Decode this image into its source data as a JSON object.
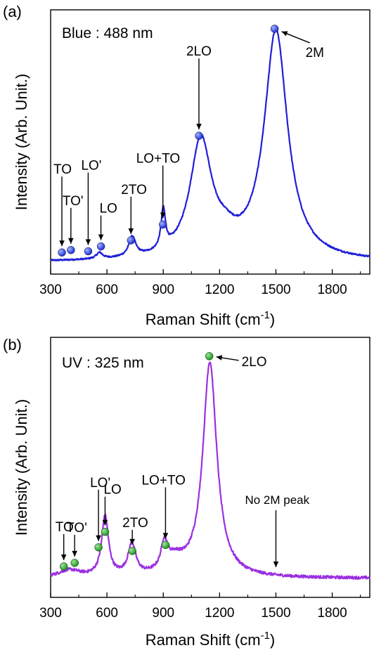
{
  "colors": {
    "panel_a_line": "#1f1fd8",
    "panel_a_marker": "#1d2fd6",
    "panel_b_line": "#9b30e0",
    "panel_b_marker": "#1a9a1a"
  },
  "chart_data": [
    {
      "type": "line",
      "panel_label": "(a)",
      "inset_label": "Blue : 488 nm",
      "xlabel": "Raman Shift (cm",
      "xlabel_sup": "-1",
      "xlabel_end": ")",
      "ylabel": "Intensity (Arb. Unit.)",
      "xlim": [
        300,
        2000
      ],
      "ylim": [
        0,
        1.0
      ],
      "xticks": [
        300,
        600,
        900,
        1200,
        1500,
        1800
      ],
      "xtick_labels": [
        "300",
        "600",
        "900",
        "1200",
        "1500",
        "1800"
      ],
      "peaks": [
        {
          "x": 1500,
          "w": 75,
          "h": 0.94
        },
        {
          "x": 1100,
          "w": 70,
          "h": 0.48
        },
        {
          "x": 1230,
          "w": 70,
          "h": 0.05
        },
        {
          "x": 900,
          "w": 14,
          "h": 0.16
        },
        {
          "x": 735,
          "w": 22,
          "h": 0.08
        },
        {
          "x": 560,
          "w": 20,
          "h": 0.025
        }
      ],
      "baseline": 0.02,
      "markers": [
        {
          "x": 360,
          "y": 0.06,
          "label": "TO"
        },
        {
          "x": 408,
          "y": 0.07,
          "label": "TO'"
        },
        {
          "x": 500,
          "y": 0.065,
          "label": "LO'"
        },
        {
          "x": 568,
          "y": 0.085,
          "label": "LO"
        },
        {
          "x": 728,
          "y": 0.11,
          "label": "2TO"
        },
        {
          "x": 898,
          "y": 0.175,
          "label": "LO+TO"
        },
        {
          "x": 1090,
          "y": 0.54,
          "label": "2LO"
        },
        {
          "x": 1493,
          "y": 0.98,
          "label": "2M"
        }
      ]
    },
    {
      "type": "line",
      "panel_label": "(b)",
      "inset_label": "UV : 325 nm",
      "xlabel": "Raman Shift (cm",
      "xlabel_sup": "-1",
      "xlabel_end": ")",
      "ylabel": "Intensity (Arb. Unit.)",
      "xlim": [
        300,
        2000
      ],
      "ylim": [
        0,
        1.0
      ],
      "xticks": [
        300,
        600,
        900,
        1200,
        1500,
        1800
      ],
      "xtick_labels": [
        "300",
        "600",
        "900",
        "1200",
        "1500",
        "1800"
      ],
      "peaks": [
        {
          "x": 1148,
          "w": 45,
          "h": 0.9
        },
        {
          "x": 960,
          "w": 60,
          "h": 0.06
        },
        {
          "x": 590,
          "w": 22,
          "h": 0.25
        },
        {
          "x": 733,
          "w": 25,
          "h": 0.13
        },
        {
          "x": 905,
          "w": 20,
          "h": 0.11
        },
        {
          "x": 400,
          "w": 70,
          "h": 0.03
        }
      ],
      "baseline": 0.05,
      "markers": [
        {
          "x": 370,
          "y": 0.1,
          "label": "TO"
        },
        {
          "x": 428,
          "y": 0.115,
          "label": "TO'"
        },
        {
          "x": 555,
          "y": 0.18,
          "label": "LO'"
        },
        {
          "x": 590,
          "y": 0.245,
          "label": "LO"
        },
        {
          "x": 735,
          "y": 0.165,
          "label": "2TO"
        },
        {
          "x": 912,
          "y": 0.19,
          "label": "LO+TO"
        },
        {
          "x": 1145,
          "y": 0.98,
          "label": "2LO"
        }
      ],
      "annotation": {
        "text": "No 2M peak",
        "x": 1500
      }
    }
  ]
}
